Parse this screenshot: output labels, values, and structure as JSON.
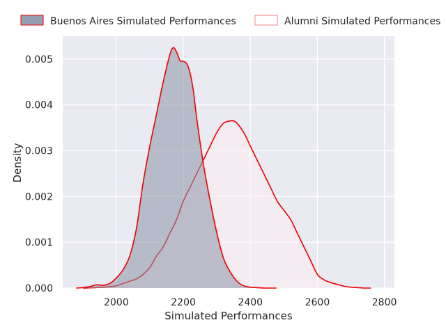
{
  "chart_data": {
    "type": "area",
    "xlabel": "Simulated Performances",
    "ylabel": "Density",
    "xlim": [
      1840,
      2830
    ],
    "ylim": [
      0,
      0.0055
    ],
    "x_ticks": [
      2000,
      2200,
      2400,
      2600,
      2800
    ],
    "x_tick_labels": [
      "2000",
      "2200",
      "2400",
      "2600",
      "2800"
    ],
    "y_ticks": [
      0,
      0.001,
      0.002,
      0.003,
      0.004,
      0.005
    ],
    "y_tick_labels": [
      "0.000",
      "0.001",
      "0.002",
      "0.003",
      "0.004",
      "0.005"
    ],
    "grid": true,
    "legend_position": "top",
    "background_color": "#eaeaf2",
    "series": [
      {
        "name": "Buenos Aires Simulated Performances",
        "fill_color": "#8a94a8",
        "fill_opacity": 0.55,
        "line_color": "#ee0000",
        "filled": true,
        "x": [
          1880,
          1900,
          1920,
          1940,
          1960,
          1980,
          2000,
          2020,
          2040,
          2060,
          2080,
          2100,
          2120,
          2140,
          2160,
          2170,
          2180,
          2190,
          2200,
          2210,
          2220,
          2230,
          2240,
          2260,
          2280,
          2300,
          2320,
          2340,
          2360,
          2380,
          2400,
          2420,
          2440,
          2460,
          2478
        ],
        "y": [
          0.0,
          1e-05,
          3e-05,
          7e-05,
          6e-05,
          0.0001,
          0.00022,
          0.0004,
          0.0007,
          0.0013,
          0.0023,
          0.0031,
          0.0038,
          0.0045,
          0.0051,
          0.00525,
          0.00515,
          0.00497,
          0.00495,
          0.0049,
          0.0047,
          0.0043,
          0.0037,
          0.0027,
          0.0019,
          0.0012,
          0.00065,
          0.00035,
          0.00015,
          5e-05,
          2e-05,
          1e-05,
          0.0,
          0.0,
          0.0
        ]
      },
      {
        "name": "Alumni Simulated Performances",
        "fill_color": "#fcedf2",
        "fill_opacity": 0.6,
        "line_color": "#ee0000",
        "filled": true,
        "x": [
          1900,
          1940,
          1980,
          2000,
          2020,
          2040,
          2060,
          2080,
          2100,
          2120,
          2140,
          2160,
          2180,
          2200,
          2220,
          2240,
          2260,
          2280,
          2300,
          2320,
          2340,
          2350,
          2360,
          2380,
          2400,
          2420,
          2440,
          2460,
          2480,
          2500,
          2520,
          2540,
          2560,
          2580,
          2600,
          2620,
          2640,
          2660,
          2680,
          2700,
          2720,
          2740,
          2760
        ],
        "y": [
          0.0,
          1e-05,
          3e-05,
          5e-05,
          0.0001,
          0.00015,
          0.0002,
          0.0003,
          0.00045,
          0.0007,
          0.0009,
          0.0012,
          0.0015,
          0.0019,
          0.0022,
          0.0025,
          0.0028,
          0.0031,
          0.0034,
          0.0036,
          0.00365,
          0.00365,
          0.0036,
          0.0034,
          0.0031,
          0.0028,
          0.0025,
          0.0022,
          0.0019,
          0.0017,
          0.0015,
          0.0012,
          0.0009,
          0.0006,
          0.0003,
          0.00018,
          0.00012,
          8e-05,
          4e-05,
          2e-05,
          1e-05,
          0.0,
          0.0
        ]
      }
    ]
  }
}
